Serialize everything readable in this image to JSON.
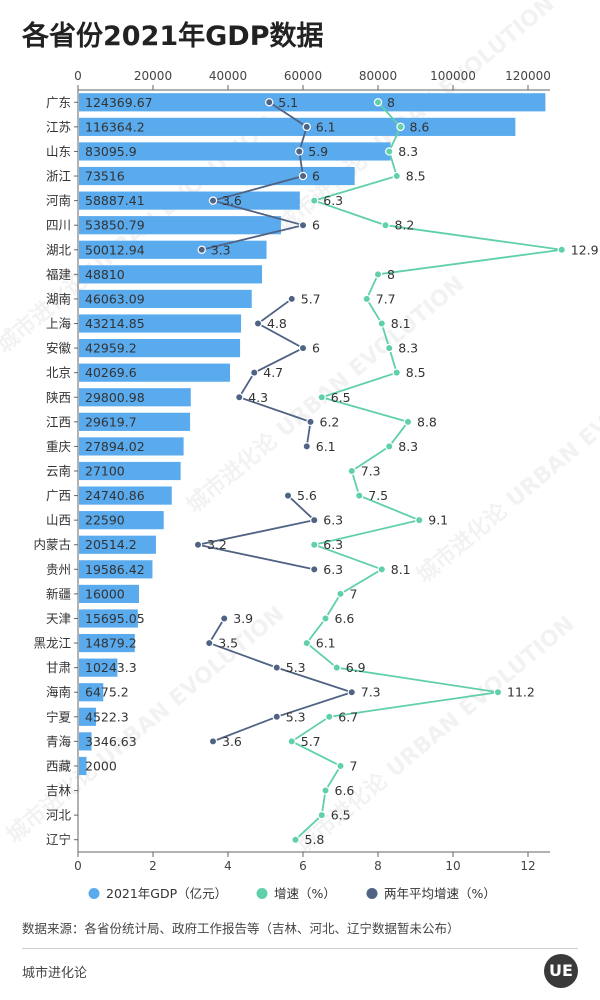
{
  "title": "各省份2021年GDP数据",
  "source_note": "数据来源：各省份统计局、政府工作报告等（吉林、河北、辽宁数据暂未公布）",
  "brand": "城市进化论",
  "logo_text": "UE",
  "colors": {
    "gdp": "#5aabee",
    "growth": "#5fd0a8",
    "avg_growth": "#4f6384"
  },
  "chart_data": {
    "type": "bar",
    "title": "各省份2021年GDP数据",
    "categories": [
      "广东",
      "江苏",
      "山东",
      "浙江",
      "河南",
      "四川",
      "湖北",
      "福建",
      "湖南",
      "上海",
      "安徽",
      "北京",
      "陕西",
      "江西",
      "重庆",
      "云南",
      "广西",
      "山西",
      "内蒙古",
      "贵州",
      "新疆",
      "天津",
      "黑龙江",
      "甘肃",
      "海南",
      "宁夏",
      "青海",
      "西藏",
      "吉林",
      "河北",
      "辽宁"
    ],
    "top_axis": {
      "min": 0,
      "max": 120000,
      "ticks": [
        "0",
        "20000",
        "40000",
        "60000",
        "80000",
        "100000",
        "120000"
      ]
    },
    "bottom_axis": {
      "min": 0,
      "max": 12,
      "ticks": [
        "0",
        "2",
        "4",
        "6",
        "8",
        "10",
        "12"
      ]
    },
    "series": [
      {
        "name": "2021年GDP（亿元）",
        "type": "bar",
        "axis": "top",
        "values": [
          124369.67,
          116364.2,
          83095.9,
          73516,
          58887.41,
          53850.79,
          50012.94,
          48810,
          46063.09,
          43214.85,
          42959.2,
          40269.6,
          29800.98,
          29619.7,
          27894.02,
          27100,
          24740.86,
          22590,
          20514.2,
          19586.42,
          16000,
          15695.05,
          14879.2,
          10243.3,
          6475.2,
          4522.3,
          3346.63,
          2000,
          null,
          null,
          null
        ],
        "labels": [
          "124369.67",
          "116364.2",
          "83095.9",
          "73516",
          "58887.41",
          "53850.79",
          "50012.94",
          "48810",
          "46063.09",
          "43214.85",
          "42959.2",
          "40269.6",
          "29800.98",
          "29619.7",
          "27894.02",
          "27100",
          "24740.86",
          "22590",
          "20514.2",
          "19586.42",
          "16000",
          "15695.05",
          "14879.2",
          "10243.3",
          "6475.2",
          "4522.3",
          "3346.63",
          "2000",
          "",
          "",
          ""
        ]
      },
      {
        "name": "增速（%）",
        "type": "line",
        "axis": "bottom",
        "values": [
          8,
          8.6,
          8.3,
          8.5,
          6.3,
          8.2,
          12.9,
          8,
          7.7,
          8.1,
          8.3,
          8.5,
          6.5,
          8.8,
          8.3,
          7.3,
          7.5,
          9.1,
          6.3,
          8.1,
          7,
          6.6,
          6.1,
          6.9,
          11.2,
          6.7,
          5.7,
          7,
          6.6,
          6.5,
          5.8
        ],
        "labels": [
          "8",
          "8.6",
          "8.3",
          "8.5",
          "6.3",
          "8.2",
          "12.9",
          "8",
          "7.7",
          "8.1",
          "8.3",
          "8.5",
          "6.5",
          "8.8",
          "8.3",
          "7.3",
          "7.5",
          "9.1",
          "6.3",
          "8.1",
          "7",
          "6.6",
          "6.1",
          "6.9",
          "11.2",
          "6.7",
          "5.7",
          "7",
          "6.6",
          "6.5",
          "5.8"
        ]
      },
      {
        "name": "两年平均增速（%）",
        "type": "line",
        "axis": "bottom",
        "values": [
          5.1,
          6.1,
          5.9,
          6,
          3.6,
          6,
          3.3,
          null,
          5.7,
          4.8,
          6,
          4.7,
          4.3,
          6.2,
          6.1,
          null,
          5.6,
          6.3,
          3.2,
          6.3,
          null,
          3.9,
          3.5,
          5.3,
          7.3,
          5.3,
          3.6,
          null,
          null,
          null,
          null
        ],
        "labels": [
          "5.1",
          "6.1",
          "5.9",
          "6",
          "3.6",
          "6",
          "3.3",
          "",
          "5.7",
          "4.8",
          "6",
          "4.7",
          "4.3",
          "6.2",
          "6.1",
          "",
          "5.6",
          "6.3",
          "3.2",
          "6.3",
          "",
          "3.9",
          "3.5",
          "5.3",
          "7.3",
          "5.3",
          "3.6",
          "",
          "",
          "",
          ""
        ]
      }
    ],
    "legend": [
      "2021年GDP（亿元）",
      "增速（%）",
      "两年平均增速（%）"
    ],
    "legend_position": "bottom",
    "watermark": "城市进化论 URBAN EVOLUTION"
  }
}
